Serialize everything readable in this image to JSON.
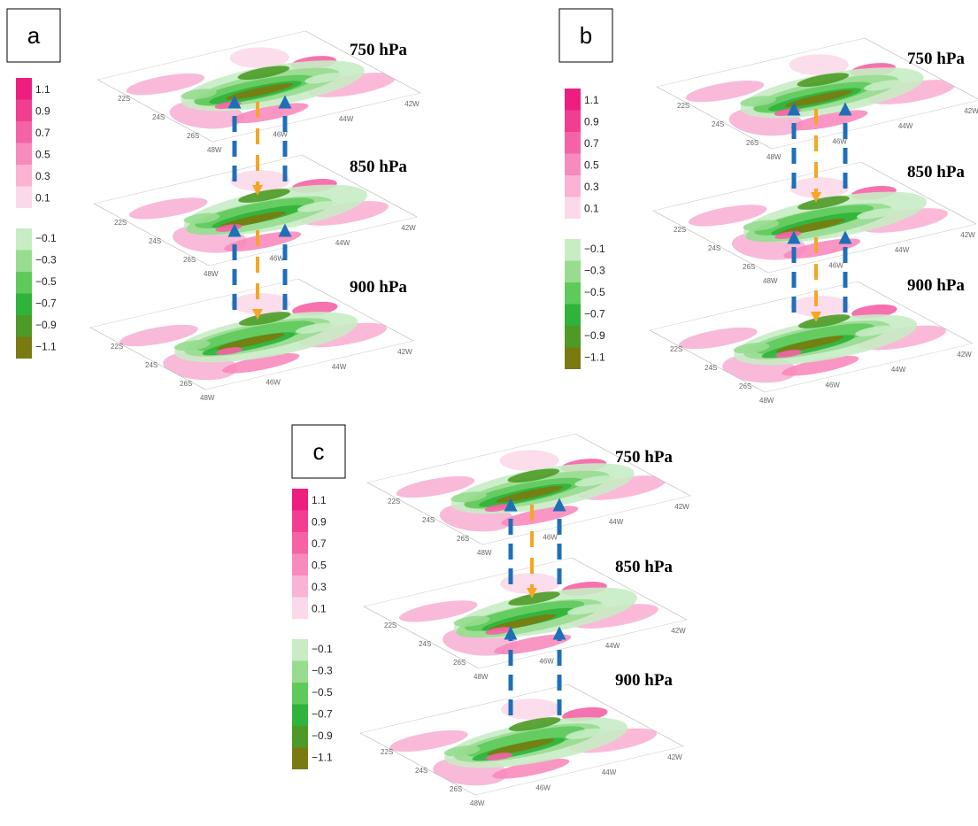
{
  "panels": [
    {
      "label": "a",
      "levels": [
        "750 hPa",
        "850 hPa",
        "900 hPa"
      ]
    },
    {
      "label": "b",
      "levels": [
        "750 hPa",
        "850 hPa",
        "900 hPa"
      ]
    },
    {
      "label": "c",
      "levels": [
        "750 hPa",
        "850 hPa",
        "900 hPa"
      ]
    }
  ],
  "colorbar": {
    "positive": [
      "1.1",
      "0.9",
      "0.7",
      "0.5",
      "0.3",
      "0.1"
    ],
    "negative": [
      "−0.1",
      "−0.3",
      "−0.5",
      "−0.7",
      "−0.9",
      "−1.1"
    ]
  },
  "map_labels": {
    "lat": [
      "22S",
      "24S",
      "26S"
    ],
    "lon": [
      "48W",
      "46W",
      "44W",
      "42W"
    ]
  }
}
